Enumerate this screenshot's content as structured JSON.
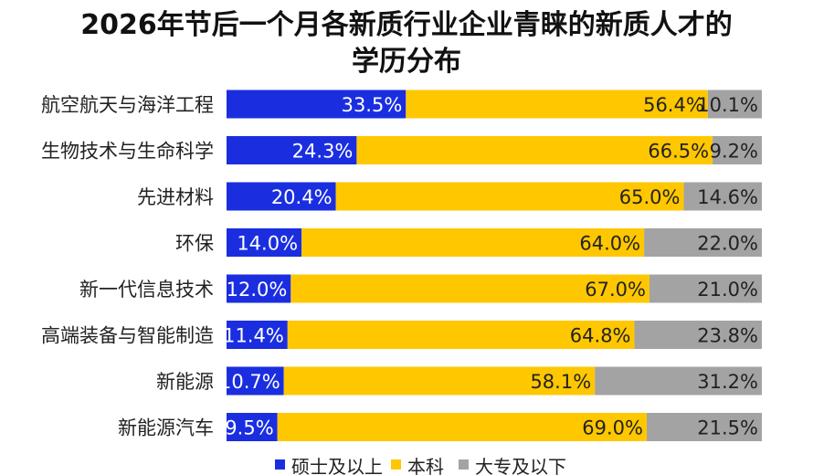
{
  "chart_data": {
    "type": "bar",
    "stacked": true,
    "orientation": "horizontal",
    "normalized_to": 100,
    "title_lines": [
      "2026年节后一个月各新质行业企业青睐的新质人才的",
      "学历分布"
    ],
    "xlabel": "",
    "ylabel": "",
    "xlim": [
      0,
      100
    ],
    "grid": false,
    "legend_position": "bottom",
    "value_format": "{v}%",
    "categories": [
      "航空航天与海洋工程",
      "生物技术与生命科学",
      "先进材料",
      "环保",
      "新一代信息技术",
      "高端装备与智能制造",
      "新能源",
      "新能源汽车"
    ],
    "series": [
      {
        "name": "硕士及以上",
        "color": "#1a2ee0",
        "label_color": "#ffffff",
        "values": [
          33.5,
          24.3,
          20.4,
          14.0,
          12.0,
          11.4,
          10.7,
          9.5
        ]
      },
      {
        "name": "本科",
        "color": "#ffc700",
        "label_color": "#222222",
        "values": [
          56.4,
          66.5,
          65.0,
          64.0,
          67.0,
          64.8,
          58.1,
          69.0
        ]
      },
      {
        "name": "大专及以下",
        "color": "#a3a3a3",
        "label_color": "#222222",
        "values": [
          10.1,
          9.2,
          14.6,
          22.0,
          21.0,
          23.8,
          31.2,
          21.5
        ]
      }
    ]
  }
}
